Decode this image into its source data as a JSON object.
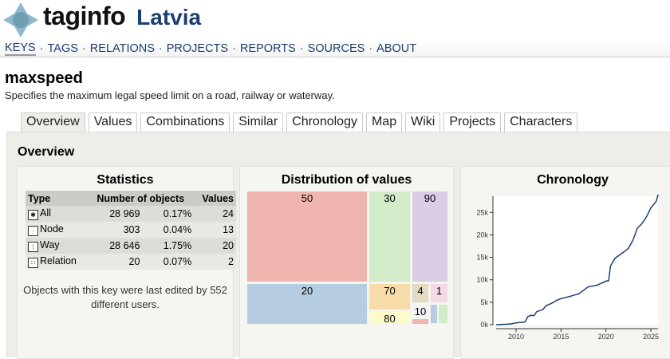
{
  "header": {
    "brand": "taginfo",
    "region": "Latvia"
  },
  "nav": [
    "KEYS",
    "TAGS",
    "RELATIONS",
    "PROJECTS",
    "REPORTS",
    "SOURCES",
    "ABOUT"
  ],
  "key": {
    "name": "maxspeed",
    "description": "Specifies the maximum legal speed limit on a road, railway or waterway."
  },
  "tabs": [
    "Overview",
    "Values",
    "Combinations",
    "Similar",
    "Chronology",
    "Map",
    "Wiki",
    "Projects",
    "Characters"
  ],
  "overview": {
    "title": "Overview",
    "statistics": {
      "title": "Statistics",
      "headers": [
        "Type",
        "Number of objects",
        "Values"
      ],
      "rows": [
        {
          "type": "All",
          "count": "28 969",
          "pct": "0.17%",
          "values": "24"
        },
        {
          "type": "Node",
          "count": "303",
          "pct": "0.04%",
          "values": "13"
        },
        {
          "type": "Way",
          "count": "28 646",
          "pct": "1.75%",
          "values": "20"
        },
        {
          "type": "Relation",
          "count": "20",
          "pct": "0.07%",
          "values": "2"
        }
      ],
      "note": "Objects with this key were last edited by 552 different users."
    },
    "distribution": {
      "title": "Distribution of values",
      "values": [
        "50",
        "30",
        "90",
        "20",
        "70",
        "4",
        "1",
        "10",
        "80"
      ],
      "colors": {
        "50": "#f0b5ae",
        "30": "#d2ebc9",
        "90": "#dccde7",
        "20": "#b6cce1",
        "70": "#f8dcaa",
        "4": "#e5dac2",
        "1": "#f6d9e6",
        "10": "#f4f4f4",
        "80": "#fdfbc9"
      }
    },
    "chronology": {
      "title": "Chronology"
    }
  },
  "chart_data": {
    "type": "line",
    "title": "Chronology",
    "xticks": [
      "2010",
      "2015",
      "2020",
      "2025"
    ],
    "yticks": [
      "0k",
      "5k",
      "10k",
      "15k",
      "20k",
      "25k"
    ],
    "xlim": [
      2007.8,
      2025.9
    ],
    "ylim": [
      0,
      28969
    ],
    "x": [
      2007.8,
      2009,
      2009.5,
      2010,
      2011,
      2011.3,
      2011.7,
      2012,
      2012.3,
      2013,
      2013.3,
      2014,
      2014.5,
      2015,
      2016,
      2016.5,
      2017,
      2018,
      2019,
      2020,
      2020.3,
      2020.5,
      2021,
      2022,
      2022.5,
      2023,
      2023.5,
      2024,
      2024.5,
      2025,
      2025.6,
      2025.8
    ],
    "y": [
      0,
      100,
      200,
      400,
      600,
      1800,
      2100,
      2000,
      2900,
      3400,
      4200,
      4800,
      5400,
      5800,
      6300,
      6600,
      6900,
      8400,
      8800,
      9700,
      9800,
      13000,
      14800,
      16200,
      17000,
      18800,
      21500,
      22500,
      24000,
      26000,
      27500,
      28969
    ],
    "color": "#1d3f6e"
  }
}
